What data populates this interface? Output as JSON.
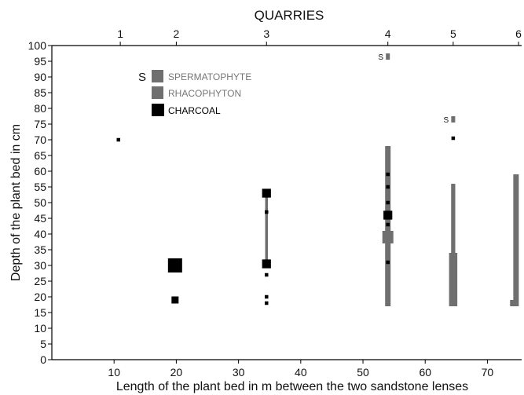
{
  "chart_data": {
    "type": "scatter",
    "title": "QUARRIES",
    "xlabel": "Length of the plant bed in m between the two sandstone lenses",
    "ylabel": "Depth of the plant bed in cm",
    "xlim": [
      0,
      75
    ],
    "ylim": [
      0,
      100
    ],
    "x_ticks": [
      10,
      20,
      30,
      40,
      50,
      60,
      70
    ],
    "y_ticks": [
      0,
      5,
      10,
      15,
      20,
      25,
      30,
      35,
      40,
      45,
      50,
      55,
      60,
      65,
      70,
      75,
      80,
      85,
      90,
      95,
      100
    ],
    "grid": false,
    "legend_position": "top-left",
    "quarries": [
      {
        "label": "1",
        "x": 11
      },
      {
        "label": "2",
        "x": 20
      },
      {
        "label": "3",
        "x": 34.5
      },
      {
        "label": "4",
        "x": 54
      },
      {
        "label": "5",
        "x": 64.5
      },
      {
        "label": "6",
        "x": 75
      }
    ],
    "legend": [
      {
        "symbol": "S",
        "label": "SPERMATOPHYTE",
        "color": "#6f6f6f",
        "text_color": "#777777"
      },
      {
        "symbol": "",
        "label": "RHACOPHYTON",
        "color": "#6f6f6f",
        "text_color": "#777777"
      },
      {
        "symbol": "",
        "label": "CHARCOAL",
        "color": "#000000",
        "text_color": "#000000"
      }
    ],
    "rhacophyton_segments": [
      {
        "x": 34.5,
        "from": 30,
        "to": 53,
        "weight": 1
      },
      {
        "x": 54,
        "from": 17,
        "to": 68,
        "weight": 2
      },
      {
        "x": 54,
        "from": 37,
        "to": 41,
        "weight": 4
      },
      {
        "x": 64.5,
        "from": 17,
        "to": 56,
        "weight": 1.5
      },
      {
        "x": 64.5,
        "from": 17,
        "to": 34,
        "weight": 3
      },
      {
        "x": 74.6,
        "from": 17,
        "to": 59,
        "weight": 2
      },
      {
        "x": 74.3,
        "from": 17,
        "to": 19,
        "weight": 3
      }
    ],
    "charcoal_points": [
      {
        "x": 10.7,
        "y": 70,
        "size": 1
      },
      {
        "x": 19.8,
        "y": 30,
        "size": 4
      },
      {
        "x": 19.8,
        "y": 19,
        "size": 2
      },
      {
        "x": 34.5,
        "y": 53,
        "size": 2.5
      },
      {
        "x": 34.5,
        "y": 47,
        "size": 1
      },
      {
        "x": 34.5,
        "y": 30.5,
        "size": 2.5
      },
      {
        "x": 34.5,
        "y": 27,
        "size": 1
      },
      {
        "x": 34.5,
        "y": 20,
        "size": 1
      },
      {
        "x": 34.5,
        "y": 18,
        "size": 1
      },
      {
        "x": 54,
        "y": 59,
        "size": 1
      },
      {
        "x": 54,
        "y": 55,
        "size": 1
      },
      {
        "x": 54,
        "y": 50,
        "size": 1
      },
      {
        "x": 54,
        "y": 46,
        "size": 2.5
      },
      {
        "x": 54,
        "y": 43,
        "size": 1
      },
      {
        "x": 54,
        "y": 31,
        "size": 1
      },
      {
        "x": 64.5,
        "y": 70.5,
        "size": 1
      }
    ],
    "spermatophyte_points": [
      {
        "x": 54,
        "y": 96.5,
        "label": "S"
      },
      {
        "x": 64.5,
        "y": 76.5,
        "label": "S"
      }
    ]
  }
}
